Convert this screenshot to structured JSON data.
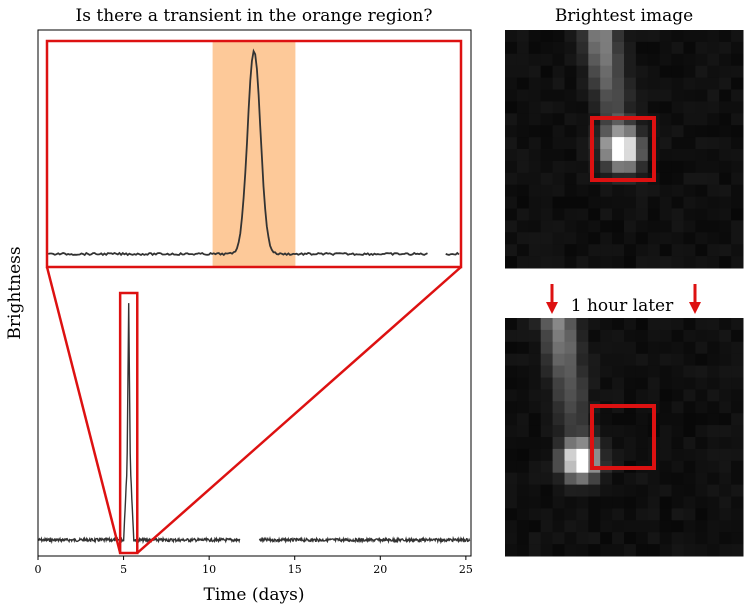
{
  "chart_data": [
    {
      "type": "line",
      "title": "Is there a transient in the orange region?",
      "xlabel": "Time (days)",
      "ylabel": "Brightness",
      "xlim": [
        0,
        25.3
      ],
      "xticks": [
        "0",
        "5",
        "10",
        "15",
        "20",
        "25"
      ],
      "baseline_gap": [
        11.8,
        12.9
      ],
      "series": [
        {
          "x": [
            0,
            5.0,
            5.2,
            5.3,
            5.4,
            5.6,
            25.3
          ],
          "y": [
            0.0,
            0.0,
            0.3,
            1.0,
            0.3,
            0.0,
            0.0
          ]
        }
      ],
      "inset": {
        "zoom_range": [
          4.8,
          5.8
        ],
        "highlight_range": [
          5.2,
          5.4
        ],
        "highlight_color": "#fdc999",
        "box_color": "#dd1111"
      }
    },
    {
      "type": "heatmap",
      "title": "Brightest image",
      "grid": [
        20,
        20
      ]
    },
    {
      "type": "heatmap",
      "annotation": "1 hour later",
      "grid": [
        20,
        20
      ]
    }
  ]
}
